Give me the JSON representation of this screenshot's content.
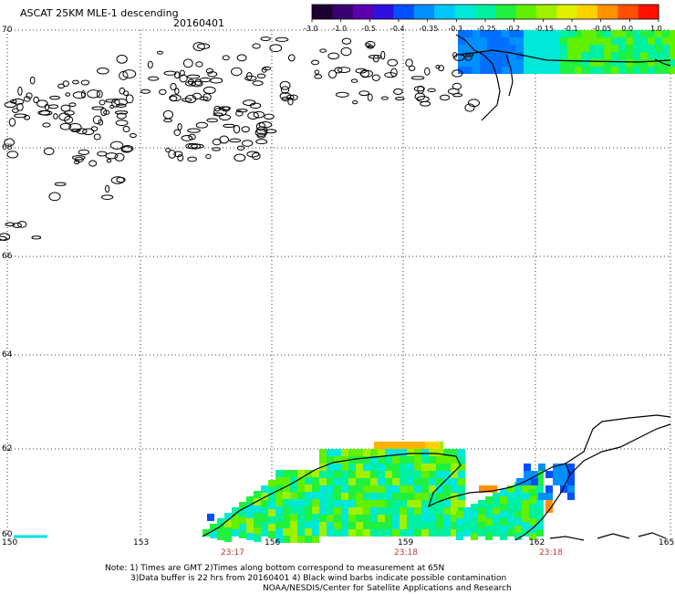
{
  "header": {
    "title": "ASCAT 25KM MLE-1 descending",
    "date": "20160401"
  },
  "colorbar": {
    "ticks": [
      "-3.0",
      "-1.0",
      "-0.5",
      "-0.4",
      "-0.35",
      "-0.3",
      "-0.25",
      "-0.2",
      "-0.15",
      "-0.1",
      "-0.05",
      "0.0",
      "1.0"
    ],
    "colors": [
      "#1a0033",
      "#3b0070",
      "#5a00b0",
      "#3010e0",
      "#0050ff",
      "#0090ff",
      "#00c8ff",
      "#00e8d8",
      "#00f0a0",
      "#20f040",
      "#60f000",
      "#a0f000",
      "#e0f000",
      "#ffd000",
      "#ff9000",
      "#ff5000",
      "#ff1000"
    ]
  },
  "map": {
    "lat_labels": [
      "70",
      "68",
      "66",
      "64",
      "62",
      "60"
    ],
    "lon_labels": [
      "150",
      "153",
      "156",
      "159",
      "162",
      "165"
    ],
    "time_labels": [
      "23:17",
      "23:18",
      "23:18"
    ]
  },
  "notes": {
    "line1": "Note: 1) Times are GMT 2)Times along bottom correspond to measurement at 65N",
    "line2": "3)Data buffer is 22 hrs from 20160401 4) Black wind barbs indicate possible contamination",
    "line3": "NOAA/NESDIS/Center for Satellite Applications and Research"
  }
}
